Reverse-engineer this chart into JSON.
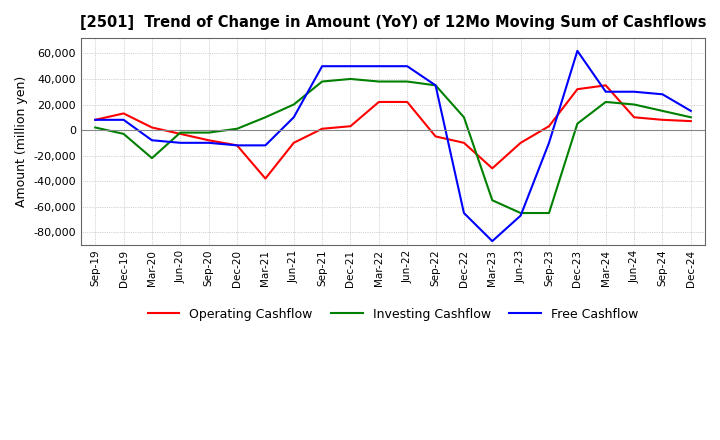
{
  "title": "[2501]  Trend of Change in Amount (YoY) of 12Mo Moving Sum of Cashflows",
  "ylabel": "Amount (million yen)",
  "ylim": [
    -90000,
    72000
  ],
  "yticks": [
    -80000,
    -60000,
    -40000,
    -20000,
    0,
    20000,
    40000,
    60000
  ],
  "x_labels": [
    "Sep-19",
    "Dec-19",
    "Mar-20",
    "Jun-20",
    "Sep-20",
    "Dec-20",
    "Mar-21",
    "Jun-21",
    "Sep-21",
    "Dec-21",
    "Mar-22",
    "Jun-22",
    "Sep-22",
    "Dec-22",
    "Mar-23",
    "Jun-23",
    "Sep-23",
    "Dec-23",
    "Mar-24",
    "Jun-24",
    "Sep-24",
    "Dec-24"
  ],
  "operating": [
    8000,
    13000,
    2000,
    -3000,
    -8000,
    -12000,
    -38000,
    -10000,
    1000,
    3000,
    22000,
    22000,
    -5000,
    -10000,
    -30000,
    -10000,
    3000,
    32000,
    35000,
    10000,
    8000,
    7000
  ],
  "investing": [
    2000,
    -3000,
    -22000,
    -2000,
    -2000,
    1000,
    10000,
    20000,
    38000,
    40000,
    38000,
    38000,
    35000,
    10000,
    -55000,
    -65000,
    -65000,
    5000,
    22000,
    20000,
    15000,
    10000
  ],
  "free": [
    8000,
    8000,
    -8000,
    -10000,
    -10000,
    -12000,
    -12000,
    10000,
    50000,
    50000,
    50000,
    50000,
    35000,
    -65000,
    -87000,
    -67000,
    -10000,
    62000,
    30000,
    30000,
    28000,
    15000
  ],
  "operating_color": "#ff0000",
  "investing_color": "#008000",
  "free_color": "#0000ff",
  "bg_color": "#ffffff",
  "grid_color": "#aaaaaa",
  "grid_style": "dotted"
}
